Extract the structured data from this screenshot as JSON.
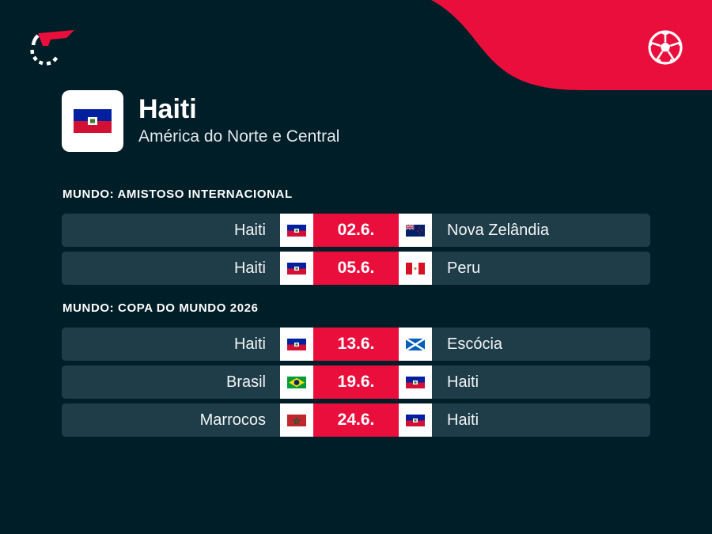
{
  "team": {
    "name": "Haiti",
    "region": "América do Norte e Central"
  },
  "colors": {
    "background": "#001e28",
    "row": "#1e3d48",
    "accent": "#ea0e3c"
  },
  "icons": {
    "logo": "flashscore-logo-icon",
    "sport": "soccer-ball-icon"
  },
  "sections": [
    {
      "title": "MUNDO: AMISTOSO INTERNACIONAL",
      "matches": [
        {
          "home": "Haiti",
          "home_flag": "haiti-flag-icon",
          "date": "02.6.",
          "away": "Nova Zelândia",
          "away_flag": "new-zealand-flag-icon"
        },
        {
          "home": "Haiti",
          "home_flag": "haiti-flag-icon",
          "date": "05.6.",
          "away": "Peru",
          "away_flag": "peru-flag-icon"
        }
      ]
    },
    {
      "title": "MUNDO: COPA DO MUNDO 2026",
      "matches": [
        {
          "home": "Haiti",
          "home_flag": "haiti-flag-icon",
          "date": "13.6.",
          "away": "Escócia",
          "away_flag": "scotland-flag-icon"
        },
        {
          "home": "Brasil",
          "home_flag": "brazil-flag-icon",
          "date": "19.6.",
          "away": "Haiti",
          "away_flag": "haiti-flag-icon"
        },
        {
          "home": "Marrocos",
          "home_flag": "morocco-flag-icon",
          "date": "24.6.",
          "away": "Haiti",
          "away_flag": "haiti-flag-icon"
        }
      ]
    }
  ]
}
